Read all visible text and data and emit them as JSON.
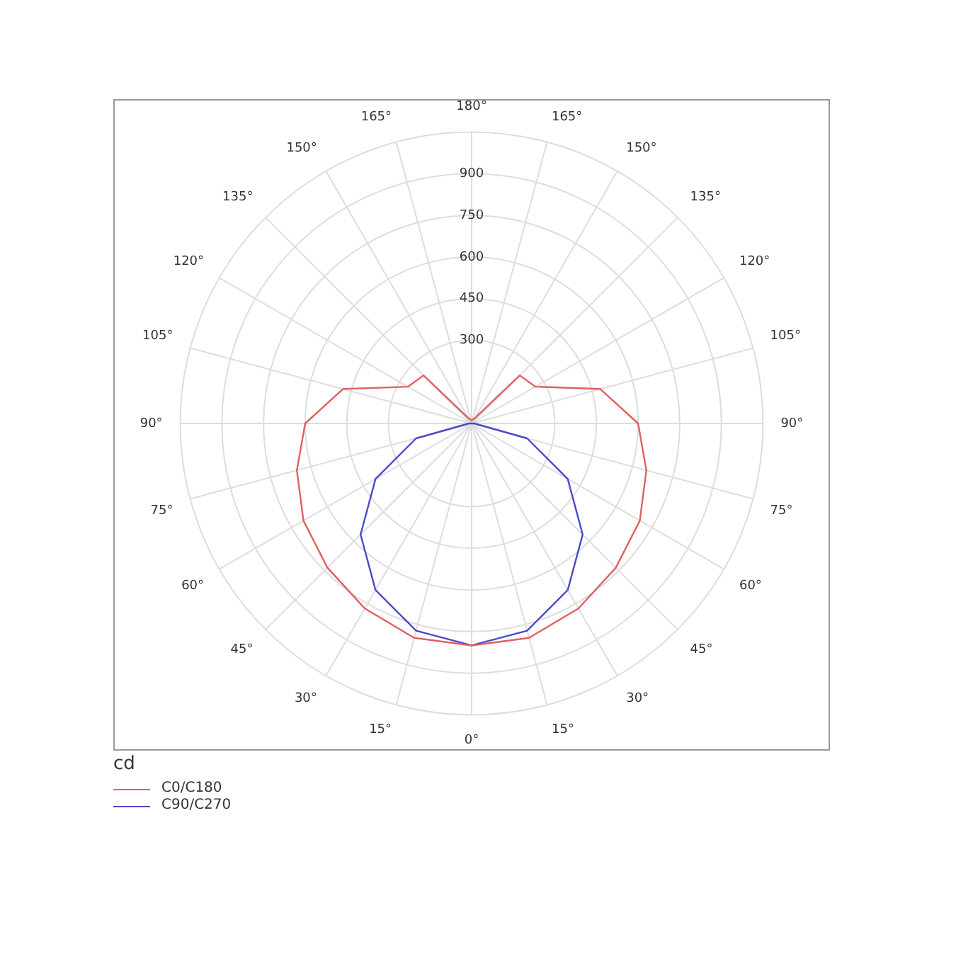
{
  "chart_data": {
    "type": "radar",
    "ylabel": "cd",
    "categories": [
      "180°",
      "165°",
      "150°",
      "135°",
      "120°",
      "105°",
      "90°",
      "75°",
      "60°",
      "45°",
      "30°",
      "15°",
      "0°",
      "15°",
      "30°",
      "45°",
      "60°",
      "75°",
      "90°",
      "105°",
      "120°",
      "135°",
      "150°",
      "165°"
    ],
    "series": [
      {
        "name": "C0/C180",
        "color": "#e06060",
        "values": [
          10,
          15,
          20,
          245,
          265,
          480,
          600,
          652,
          700,
          735,
          770,
          800,
          800,
          800,
          770,
          735,
          700,
          652,
          600,
          480,
          265,
          245,
          20,
          15
        ]
      },
      {
        "name": "C90/C270",
        "color": "#4a4ac8",
        "values": [
          0,
          0,
          0,
          0,
          0,
          0,
          10,
          207,
          400,
          566,
          693,
          773,
          800,
          773,
          693,
          566,
          400,
          207,
          10,
          0,
          0,
          0,
          0,
          0
        ]
      }
    ],
    "ylim": [
      0,
      1050
    ],
    "yticks": [
      300,
      450,
      600,
      750,
      900
    ],
    "grid": true,
    "legend": "bottom left"
  }
}
